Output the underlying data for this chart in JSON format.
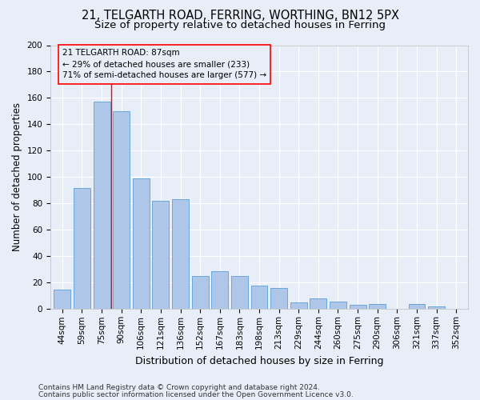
{
  "title1": "21, TELGARTH ROAD, FERRING, WORTHING, BN12 5PX",
  "title2": "Size of property relative to detached houses in Ferring",
  "xlabel": "Distribution of detached houses by size in Ferring",
  "ylabel": "Number of detached properties",
  "categories": [
    "44sqm",
    "59sqm",
    "75sqm",
    "90sqm",
    "106sqm",
    "121sqm",
    "136sqm",
    "152sqm",
    "167sqm",
    "183sqm",
    "198sqm",
    "213sqm",
    "229sqm",
    "244sqm",
    "260sqm",
    "275sqm",
    "290sqm",
    "306sqm",
    "321sqm",
    "337sqm",
    "352sqm"
  ],
  "values": [
    15,
    92,
    157,
    150,
    99,
    82,
    83,
    25,
    29,
    25,
    18,
    16,
    5,
    8,
    6,
    3,
    4,
    0,
    4,
    2,
    0
  ],
  "bar_color": "#aec6e8",
  "bar_edge_color": "#5a9fd4",
  "background_color": "#e8eef8",
  "grid_color": "#ffffff",
  "annotation_line1": "21 TELGARTH ROAD: 87sqm",
  "annotation_line2": "← 29% of detached houses are smaller (233)",
  "annotation_line3": "71% of semi-detached houses are larger (577) →",
  "vline_x_idx": 2.5,
  "footer1": "Contains HM Land Registry data © Crown copyright and database right 2024.",
  "footer2": "Contains public sector information licensed under the Open Government Licence v3.0.",
  "ylim": [
    0,
    200
  ],
  "yticks": [
    0,
    20,
    40,
    60,
    80,
    100,
    120,
    140,
    160,
    180,
    200
  ],
  "title1_fontsize": 10.5,
  "title2_fontsize": 9.5,
  "xlabel_fontsize": 9,
  "ylabel_fontsize": 8.5,
  "tick_fontsize": 7.5,
  "annotation_fontsize": 7.5,
  "footer_fontsize": 6.5
}
